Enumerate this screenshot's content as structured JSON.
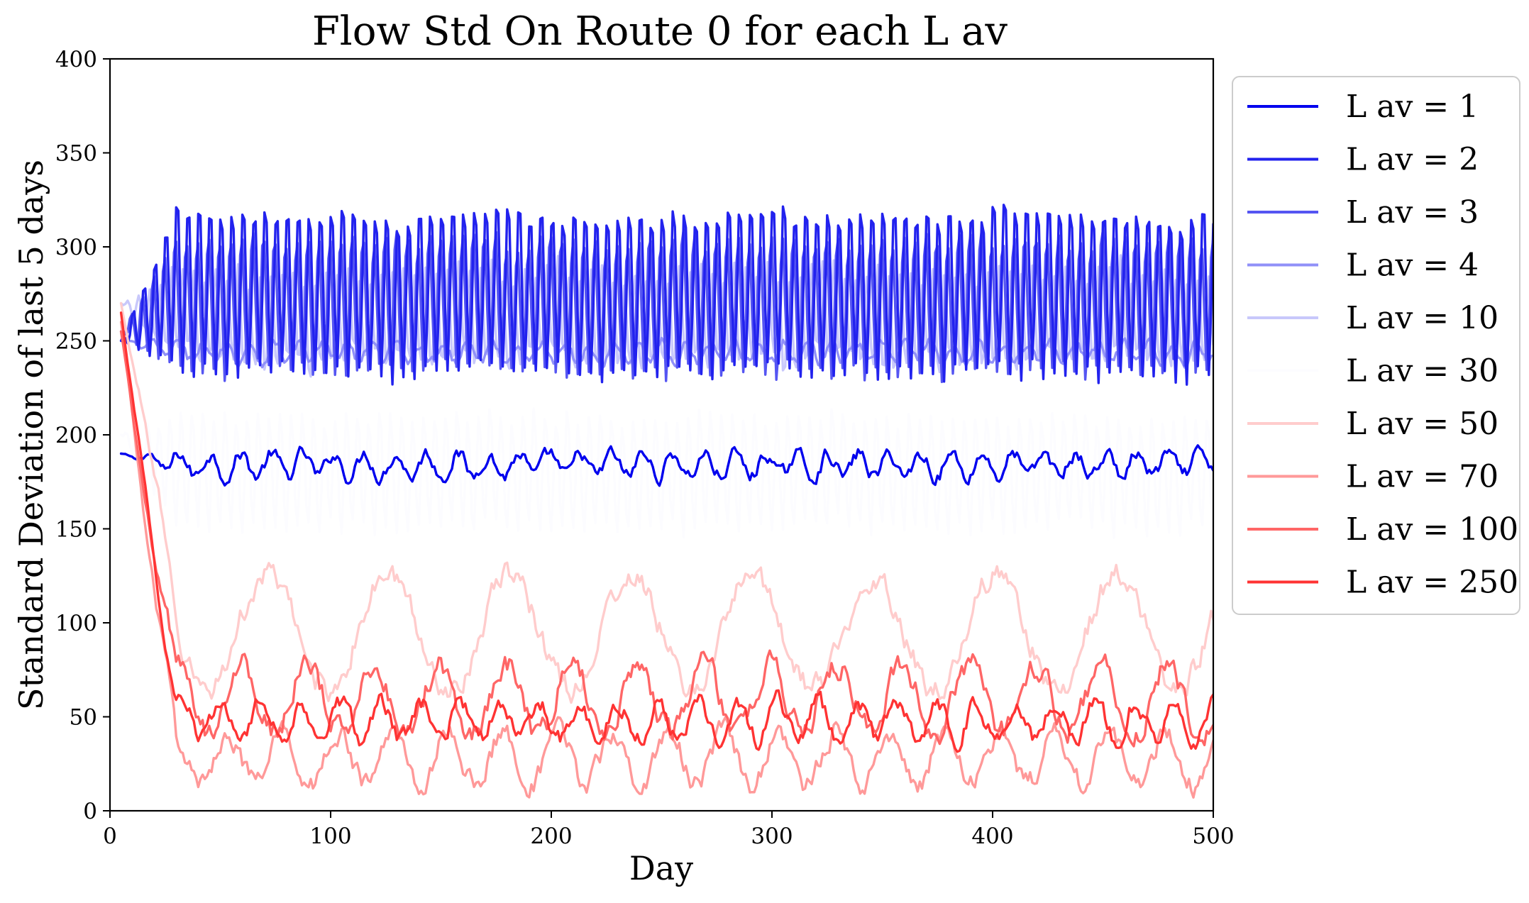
{
  "chart_data": {
    "type": "line",
    "title": "Flow Std On Route 0 for each L av",
    "xlabel": "Day",
    "ylabel": "Standard Deviation of last 5 days",
    "xlim": [
      0,
      500
    ],
    "ylim": [
      0,
      400
    ],
    "xticks": [
      0,
      100,
      200,
      300,
      400,
      500
    ],
    "yticks": [
      0,
      50,
      100,
      150,
      200,
      250,
      300,
      350,
      400
    ],
    "xtick_labels": [
      "0",
      "100",
      "200",
      "300",
      "400",
      "500"
    ],
    "ytick_labels": [
      "0",
      "50",
      "100",
      "150",
      "200",
      "250",
      "300",
      "350",
      "400"
    ],
    "grid": false,
    "legend_position": "outside-right-top",
    "series": [
      {
        "name": "L av = 1",
        "color": "#0000ee",
        "start": [
          5,
          190
        ],
        "mean": 184,
        "amp": 6,
        "period": 14,
        "noise": 8
      },
      {
        "name": "L av = 2",
        "color": "#2222ee",
        "start": [
          5,
          250
        ],
        "mean": 278,
        "amp": 44,
        "period": 5,
        "noise": 10
      },
      {
        "name": "L av = 3",
        "color": "#5555f2",
        "start": [
          5,
          255
        ],
        "mean": 270,
        "amp": 36,
        "period": 5,
        "noise": 10
      },
      {
        "name": "L av = 4",
        "color": "#9090f8",
        "start": [
          5,
          250
        ],
        "mean": 244,
        "amp": 5,
        "period": 11,
        "noise": 6
      },
      {
        "name": "L av = 10",
        "color": "#c8c8fb",
        "start": [
          5,
          270
        ],
        "mean": 262,
        "amp": 24,
        "period": 5,
        "noise": 14
      },
      {
        "name": "L av = 30",
        "color": "#fcfcff",
        "start": [
          5,
          200
        ],
        "mean": 180,
        "amp": 30,
        "period": 5,
        "noise": 10
      },
      {
        "name": "L av = 50",
        "color": "#ffcccc",
        "start": [
          5,
          270
        ],
        "mean": 95,
        "amp": 30,
        "period": 55,
        "noise": 14
      },
      {
        "name": "L av = 70",
        "color": "#ff9999",
        "start": [
          5,
          260
        ],
        "mean": 28,
        "amp": 14,
        "period": 25,
        "noise": 12
      },
      {
        "name": "L av = 100",
        "color": "#ff6666",
        "start": [
          5,
          255
        ],
        "mean": 60,
        "amp": 18,
        "period": 30,
        "noise": 14
      },
      {
        "name": "L av = 250",
        "color": "#ff3333",
        "start": [
          5,
          265
        ],
        "mean": 48,
        "amp": 10,
        "period": 18,
        "noise": 10
      }
    ]
  }
}
